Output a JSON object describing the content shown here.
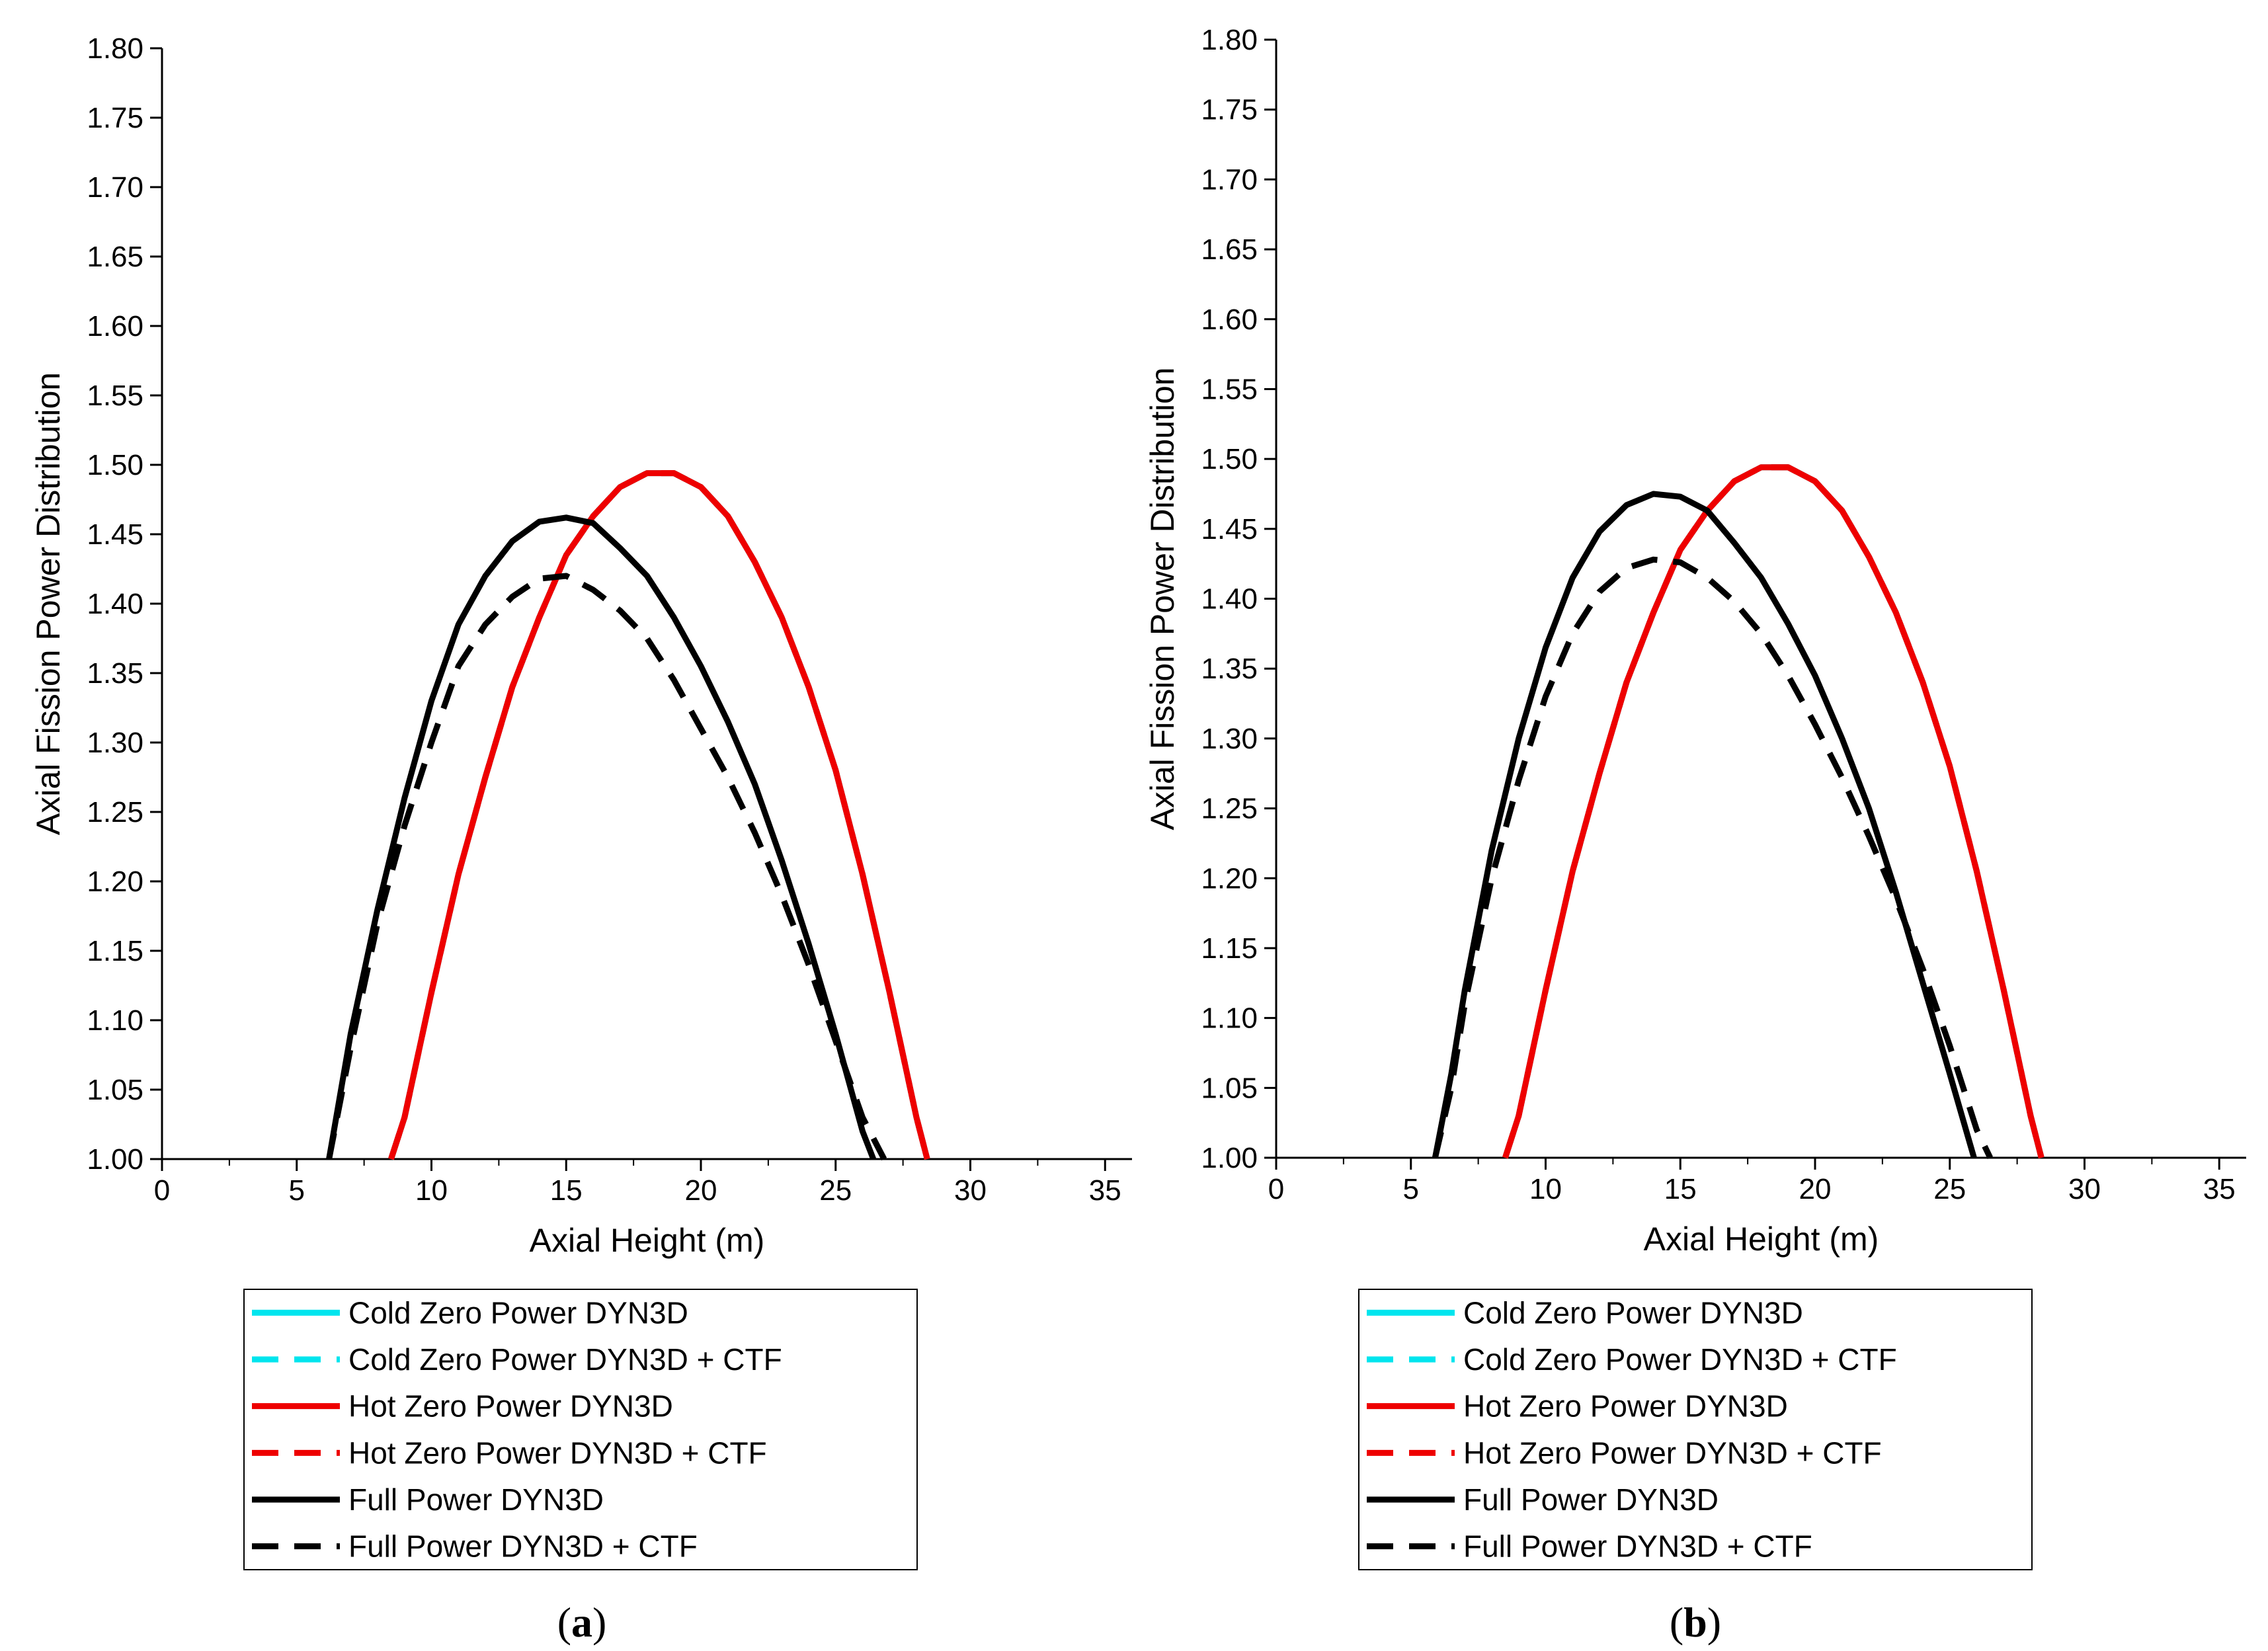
{
  "figure": {
    "legend_entries": [
      {
        "label": "Cold Zero Power DYN3D",
        "color": "#00e5ee",
        "dash": false
      },
      {
        "label": "Cold Zero Power DYN3D + CTF",
        "color": "#00e5ee",
        "dash": true
      },
      {
        "label": "Hot Zero Power DYN3D",
        "color": "#ee0000",
        "dash": false
      },
      {
        "label": "Hot Zero Power DYN3D + CTF",
        "color": "#ee0000",
        "dash": true
      },
      {
        "label": "Full Power DYN3D",
        "color": "#000000",
        "dash": false
      },
      {
        "label": "Full Power DYN3D + CTF",
        "color": "#000000",
        "dash": true
      }
    ]
  },
  "chart_data": [
    {
      "type": "line",
      "panel_label": "a",
      "xlabel": "Axial Height (m)",
      "ylabel": "Axial Fission Power Distribution",
      "xlim": [
        0,
        36
      ],
      "ylim": [
        1.0,
        1.8
      ],
      "xticks": [
        "0",
        "5",
        "10",
        "15",
        "20",
        "25",
        "30",
        "35"
      ],
      "yticks": [
        "1.00",
        "1.05",
        "1.10",
        "1.15",
        "1.20",
        "1.25",
        "1.30",
        "1.35",
        "1.40",
        "1.45",
        "1.50",
        "1.55",
        "1.60",
        "1.65",
        "1.70",
        "1.75",
        "1.80"
      ],
      "series": [
        {
          "name": "Cold Zero Power DYN3D",
          "color": "#00e5ee",
          "dash": false,
          "x": [
            8.5,
            9,
            10,
            11,
            12,
            13,
            14,
            15,
            16,
            17,
            18,
            19,
            20,
            21,
            22,
            23,
            24,
            25,
            26,
            27,
            28,
            28.4
          ],
          "y": [
            1.0,
            1.03,
            1.12,
            1.205,
            1.275,
            1.34,
            1.39,
            1.435,
            1.463,
            1.484,
            1.494,
            1.494,
            1.484,
            1.463,
            1.43,
            1.39,
            1.34,
            1.28,
            1.205,
            1.12,
            1.03,
            1.0
          ]
        },
        {
          "name": "Cold Zero Power DYN3D + CTF",
          "color": "#00e5ee",
          "dash": true,
          "x": [
            8.5,
            9,
            10,
            11,
            12,
            13,
            14,
            15,
            16,
            17,
            18,
            19,
            20,
            21,
            22,
            23,
            24,
            25,
            26,
            27,
            28,
            28.4
          ],
          "y": [
            1.0,
            1.03,
            1.12,
            1.205,
            1.275,
            1.34,
            1.39,
            1.435,
            1.463,
            1.484,
            1.494,
            1.494,
            1.484,
            1.463,
            1.43,
            1.39,
            1.34,
            1.28,
            1.205,
            1.12,
            1.03,
            1.0
          ]
        },
        {
          "name": "Hot Zero Power DYN3D",
          "color": "#ee0000",
          "dash": false,
          "x": [
            8.5,
            9,
            10,
            11,
            12,
            13,
            14,
            15,
            16,
            17,
            18,
            19,
            20,
            21,
            22,
            23,
            24,
            25,
            26,
            27,
            28,
            28.4
          ],
          "y": [
            1.0,
            1.03,
            1.12,
            1.205,
            1.275,
            1.34,
            1.39,
            1.435,
            1.463,
            1.484,
            1.494,
            1.494,
            1.484,
            1.463,
            1.43,
            1.39,
            1.34,
            1.28,
            1.205,
            1.12,
            1.03,
            1.0
          ]
        },
        {
          "name": "Hot Zero Power DYN3D + CTF",
          "color": "#ee0000",
          "dash": true,
          "x": [
            8.5,
            9,
            10,
            11,
            12,
            13,
            14,
            15,
            16,
            17,
            18,
            19,
            20,
            21,
            22,
            23,
            24,
            25,
            26,
            27,
            28,
            28.4
          ],
          "y": [
            1.0,
            1.03,
            1.12,
            1.205,
            1.275,
            1.34,
            1.39,
            1.435,
            1.463,
            1.484,
            1.494,
            1.494,
            1.484,
            1.463,
            1.43,
            1.39,
            1.34,
            1.28,
            1.205,
            1.12,
            1.03,
            1.0
          ]
        },
        {
          "name": "Full Power DYN3D",
          "color": "#000000",
          "dash": false,
          "x": [
            6.2,
            7,
            8,
            9,
            10,
            11,
            12,
            13,
            14,
            15,
            16,
            17,
            18,
            19,
            20,
            21,
            22,
            23,
            24,
            25,
            26,
            26.4
          ],
          "y": [
            1.0,
            1.09,
            1.18,
            1.26,
            1.33,
            1.385,
            1.42,
            1.445,
            1.459,
            1.462,
            1.458,
            1.44,
            1.42,
            1.39,
            1.355,
            1.315,
            1.27,
            1.215,
            1.155,
            1.09,
            1.02,
            1.0
          ]
        },
        {
          "name": "Full Power DYN3D + CTF",
          "color": "#000000",
          "dash": true,
          "x": [
            6.2,
            7,
            8,
            9,
            10,
            11,
            12,
            13,
            14,
            15,
            16,
            17,
            18,
            19,
            20,
            21,
            22,
            23,
            24,
            25,
            26,
            26.8
          ],
          "y": [
            1.0,
            1.08,
            1.17,
            1.24,
            1.3,
            1.355,
            1.385,
            1.405,
            1.418,
            1.42,
            1.41,
            1.395,
            1.375,
            1.345,
            1.31,
            1.275,
            1.235,
            1.19,
            1.14,
            1.085,
            1.03,
            1.0
          ]
        }
      ]
    },
    {
      "type": "line",
      "panel_label": "b",
      "xlabel": "Axial Height (m)",
      "ylabel": "Axial Fission Power Distribution",
      "xlim": [
        0,
        36
      ],
      "ylim": [
        1.0,
        1.8
      ],
      "xticks": [
        "0",
        "5",
        "10",
        "15",
        "20",
        "25",
        "30",
        "35"
      ],
      "yticks": [
        "1.00",
        "1.05",
        "1.10",
        "1.15",
        "1.20",
        "1.25",
        "1.30",
        "1.35",
        "1.40",
        "1.45",
        "1.50",
        "1.55",
        "1.60",
        "1.65",
        "1.70",
        "1.75",
        "1.80"
      ],
      "series": [
        {
          "name": "Cold Zero Power DYN3D",
          "color": "#00e5ee",
          "dash": false,
          "x": [
            8.5,
            9,
            10,
            11,
            12,
            13,
            14,
            15,
            16,
            17,
            18,
            19,
            20,
            21,
            22,
            23,
            24,
            25,
            26,
            27,
            28,
            28.4
          ],
          "y": [
            1.0,
            1.03,
            1.12,
            1.205,
            1.275,
            1.34,
            1.39,
            1.435,
            1.463,
            1.484,
            1.494,
            1.494,
            1.484,
            1.463,
            1.43,
            1.39,
            1.34,
            1.28,
            1.205,
            1.12,
            1.03,
            1.0
          ]
        },
        {
          "name": "Cold Zero Power DYN3D + CTF",
          "color": "#00e5ee",
          "dash": true,
          "x": [
            8.5,
            9,
            10,
            11,
            12,
            13,
            14,
            15,
            16,
            17,
            18,
            19,
            20,
            21,
            22,
            23,
            24,
            25,
            26,
            27,
            28,
            28.4
          ],
          "y": [
            1.0,
            1.03,
            1.12,
            1.205,
            1.275,
            1.34,
            1.39,
            1.435,
            1.463,
            1.484,
            1.494,
            1.494,
            1.484,
            1.463,
            1.43,
            1.39,
            1.34,
            1.28,
            1.205,
            1.12,
            1.03,
            1.0
          ]
        },
        {
          "name": "Hot Zero Power DYN3D",
          "color": "#ee0000",
          "dash": false,
          "x": [
            8.5,
            9,
            10,
            11,
            12,
            13,
            14,
            15,
            16,
            17,
            18,
            19,
            20,
            21,
            22,
            23,
            24,
            25,
            26,
            27,
            28,
            28.4
          ],
          "y": [
            1.0,
            1.03,
            1.12,
            1.205,
            1.275,
            1.34,
            1.39,
            1.435,
            1.463,
            1.484,
            1.494,
            1.494,
            1.484,
            1.463,
            1.43,
            1.39,
            1.34,
            1.28,
            1.205,
            1.12,
            1.03,
            1.0
          ]
        },
        {
          "name": "Hot Zero Power DYN3D + CTF",
          "color": "#ee0000",
          "dash": true,
          "x": [
            8.5,
            9,
            10,
            11,
            12,
            13,
            14,
            15,
            16,
            17,
            18,
            19,
            20,
            21,
            22,
            23,
            24,
            25,
            26,
            27,
            28,
            28.4
          ],
          "y": [
            1.0,
            1.03,
            1.12,
            1.205,
            1.275,
            1.34,
            1.39,
            1.435,
            1.463,
            1.484,
            1.494,
            1.494,
            1.484,
            1.463,
            1.43,
            1.39,
            1.34,
            1.28,
            1.205,
            1.12,
            1.03,
            1.0
          ]
        },
        {
          "name": "Full Power DYN3D",
          "color": "#000000",
          "dash": false,
          "x": [
            5.9,
            6.5,
            7,
            8,
            9,
            10,
            11,
            12,
            13,
            14,
            15,
            16,
            17,
            18,
            19,
            20,
            21,
            22,
            23,
            24,
            25,
            25.9
          ],
          "y": [
            1.0,
            1.06,
            1.12,
            1.22,
            1.3,
            1.365,
            1.415,
            1.448,
            1.467,
            1.475,
            1.473,
            1.463,
            1.44,
            1.415,
            1.382,
            1.345,
            1.3,
            1.25,
            1.19,
            1.125,
            1.06,
            1.0
          ]
        },
        {
          "name": "Full Power DYN3D + CTF",
          "color": "#000000",
          "dash": true,
          "x": [
            5.9,
            6.5,
            7,
            8,
            9,
            10,
            11,
            12,
            13,
            14,
            15,
            16,
            17,
            18,
            19,
            20,
            21,
            22,
            23,
            24,
            25,
            26,
            26.5
          ],
          "y": [
            1.0,
            1.05,
            1.11,
            1.2,
            1.27,
            1.33,
            1.375,
            1.405,
            1.422,
            1.428,
            1.426,
            1.415,
            1.398,
            1.375,
            1.345,
            1.31,
            1.272,
            1.23,
            1.185,
            1.135,
            1.08,
            1.02,
            1.0
          ]
        }
      ]
    }
  ]
}
